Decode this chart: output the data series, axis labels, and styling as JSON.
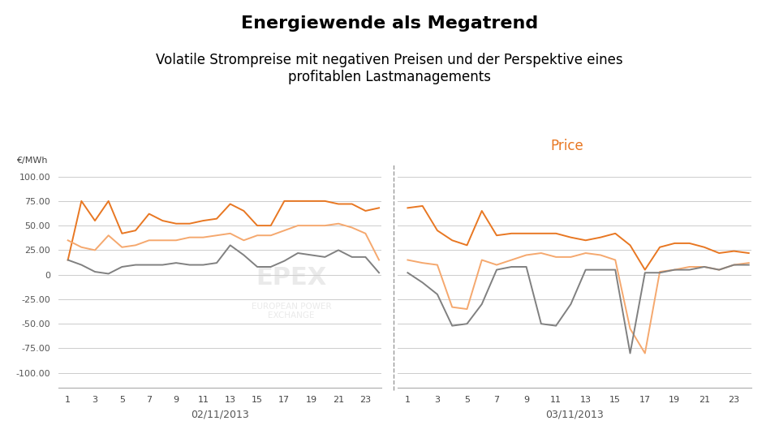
{
  "title": "Energiewende als Megatrend",
  "subtitle": "Volatile Strompreise mit negativen Preisen und der Perspektive eines\nprofitablen Lastmanagements",
  "ylabel": "€/MWh",
  "price_label": "Price",
  "xlabel_left": "02/11/2013",
  "xlabel_right": "03/11/2013",
  "ylim": [
    -115,
    108
  ],
  "yticks": [
    -100,
    -75,
    -50,
    -25,
    0,
    25,
    50,
    75,
    100
  ],
  "ytick_labels": [
    "-100.00",
    "-75.00",
    "-50.00",
    "-25.00",
    "0",
    "25.00",
    "50.00",
    "75.00",
    "100.00"
  ],
  "x_ticks_feb": [
    1,
    3,
    5,
    7,
    9,
    11,
    13,
    15,
    17,
    19,
    21,
    23
  ],
  "x_ticks_mar": [
    1,
    3,
    5,
    7,
    9,
    11,
    13,
    15,
    17,
    19,
    21,
    23
  ],
  "title_fontsize": 16,
  "subtitle_fontsize": 12,
  "bg_color": "#ffffff",
  "grid_color": "#cccccc",
  "line1_color": "#E87722",
  "line2_color": "#F5A86E",
  "line3_color": "#808080",
  "line_width": 1.4,
  "series1_feb": [
    15,
    75,
    55,
    75,
    42,
    45,
    62,
    55,
    52,
    52,
    55,
    57,
    72,
    65,
    50,
    50,
    75,
    75,
    75,
    75,
    72,
    72,
    65,
    68
  ],
  "series2_feb": [
    35,
    28,
    25,
    40,
    28,
    30,
    35,
    35,
    35,
    38,
    38,
    40,
    42,
    35,
    40,
    40,
    45,
    50,
    50,
    50,
    52,
    48,
    42,
    15
  ],
  "series3_feb": [
    15,
    10,
    3,
    1,
    8,
    10,
    10,
    10,
    12,
    10,
    10,
    12,
    30,
    20,
    8,
    8,
    14,
    22,
    20,
    18,
    25,
    18,
    18,
    2
  ],
  "series1_mar": [
    68,
    70,
    45,
    35,
    30,
    65,
    40,
    42,
    42,
    42,
    42,
    38,
    35,
    38,
    42,
    30,
    5,
    28,
    32,
    32,
    28,
    22,
    24,
    22
  ],
  "series2_mar": [
    15,
    12,
    10,
    -33,
    -35,
    15,
    10,
    15,
    20,
    22,
    18,
    18,
    22,
    20,
    15,
    -55,
    -80,
    3,
    5,
    8,
    8,
    5,
    10,
    12
  ],
  "series3_mar": [
    2,
    -8,
    -20,
    -52,
    -50,
    -30,
    5,
    8,
    8,
    -50,
    -52,
    -30,
    5,
    5,
    5,
    -80,
    2,
    2,
    5,
    5,
    8,
    5,
    10,
    10
  ]
}
